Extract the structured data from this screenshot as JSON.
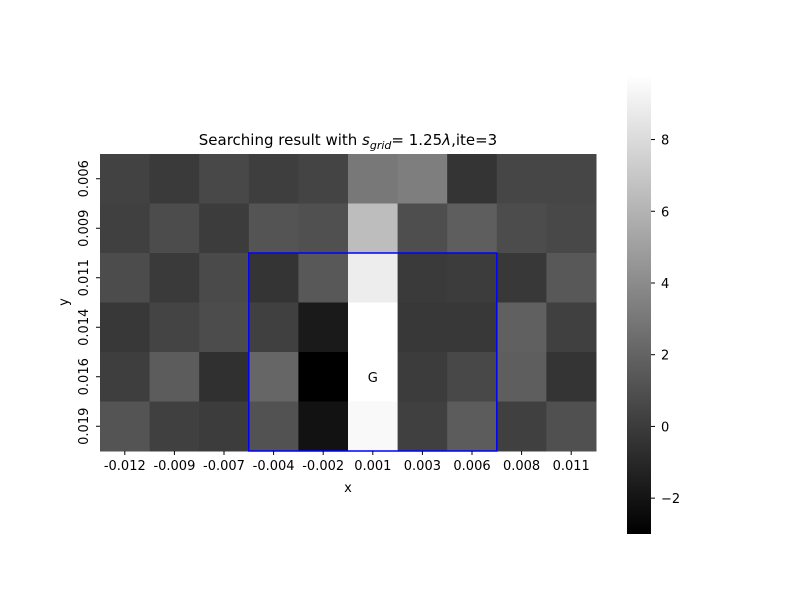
{
  "chart_data": {
    "type": "heatmap",
    "title_parts": {
      "prefix": "Searching result with ",
      "var": "s",
      "sub": "grid",
      "mid": "= 1.25",
      "lambda": "λ",
      "suffix": ",ite=3"
    },
    "xlabel": "x",
    "ylabel": "y",
    "x_categories": [
      "-0.012",
      "-0.009",
      "-0.007",
      "-0.004",
      "-0.002",
      "0.001",
      "0.003",
      "0.006",
      "0.008",
      "0.011"
    ],
    "y_categories": [
      "0.006",
      "0.009",
      "0.011",
      "0.014",
      "0.016",
      "0.019"
    ],
    "values": [
      [
        0.3,
        -0.1,
        0.6,
        0.1,
        0.4,
        3.0,
        3.3,
        -0.4,
        0.5,
        0.5
      ],
      [
        0.2,
        0.8,
        0.0,
        1.2,
        1.0,
        6.5,
        0.9,
        1.7,
        0.8,
        0.6
      ],
      [
        0.8,
        -0.1,
        0.7,
        -0.4,
        1.4,
        8.9,
        -0.1,
        0.0,
        -0.2,
        1.4
      ],
      [
        -0.2,
        0.4,
        0.8,
        0.2,
        -1.7,
        10.0,
        -0.2,
        -0.2,
        1.8,
        0.2
      ],
      [
        0.1,
        1.6,
        -0.6,
        2.1,
        -3.0,
        10.0,
        0.0,
        0.6,
        1.7,
        -0.4
      ],
      [
        1.2,
        0.2,
        0.0,
        1.1,
        -2.1,
        9.5,
        0.2,
        1.6,
        0.2,
        1.0
      ]
    ],
    "vmin": -3.0,
    "vmax": 9.8,
    "colormap": "gray",
    "colorbar_ticks": [
      -2,
      0,
      2,
      4,
      6,
      8
    ],
    "annotation": {
      "text": "G",
      "row": 4,
      "col": 5,
      "color": "#ff0000"
    },
    "highlight_box": {
      "col_start": 3,
      "col_end": 7,
      "row_start": 2,
      "row_end": 5,
      "color": "#0000ff"
    },
    "grid": false
  }
}
